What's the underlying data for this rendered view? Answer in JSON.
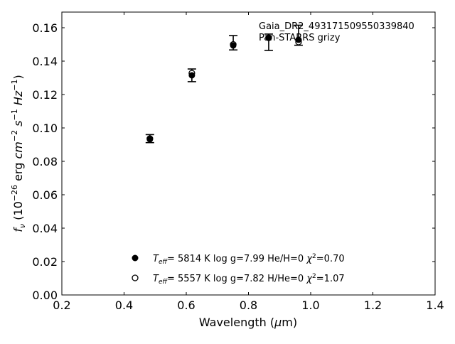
{
  "chart_data": {
    "type": "scatter",
    "title": "",
    "xlabel": "Wavelength (μm)",
    "ylabel": "f_ν (10^-26 erg cm^-2 s^-1 Hz^-1)",
    "xlim": [
      0.2,
      1.4
    ],
    "ylim": [
      0.0,
      0.17
    ],
    "xticks": [
      "0.2",
      "0.4",
      "0.6",
      "0.8",
      "1.0",
      "1.2",
      "1.4"
    ],
    "yticks": [
      "0.00",
      "0.02",
      "0.04",
      "0.06",
      "0.08",
      "0.10",
      "0.12",
      "0.14",
      "0.16"
    ],
    "annotation": {
      "line1": "Gaia_DR2_4931715095503398​40",
      "line2": "Pan-STARRS grizy"
    },
    "observed": {
      "x": [
        0.483,
        0.618,
        0.751,
        0.865,
        0.961
      ],
      "y": [
        0.0936,
        0.1315,
        0.151,
        0.1513,
        0.1555
      ],
      "yerr": [
        0.0024,
        0.0038,
        0.0043,
        0.0049,
        0.006
      ]
    },
    "series": [
      {
        "name": "filled",
        "marker": "filled-circle",
        "label_teff": "5814 K",
        "label_logg": "log g=7.99",
        "label_comp": "He/H=0",
        "label_chi2": "=0.70",
        "x": [
          0.483,
          0.618,
          0.751,
          0.865,
          0.961
        ],
        "y": [
          0.0932,
          0.1315,
          0.1494,
          0.154,
          0.1528
        ]
      },
      {
        "name": "open",
        "marker": "open-circle",
        "label_teff": "5557 K",
        "label_logg": "log g=7.82",
        "label_comp": "H/He=0",
        "label_chi2": "=1.07",
        "x": [
          0.483,
          0.618,
          0.751,
          0.865,
          0.961
        ],
        "y": [
          0.0936,
          0.1328,
          0.15,
          0.154,
          0.1515
        ]
      }
    ],
    "legend_position": "bottom-center",
    "grid": false
  }
}
